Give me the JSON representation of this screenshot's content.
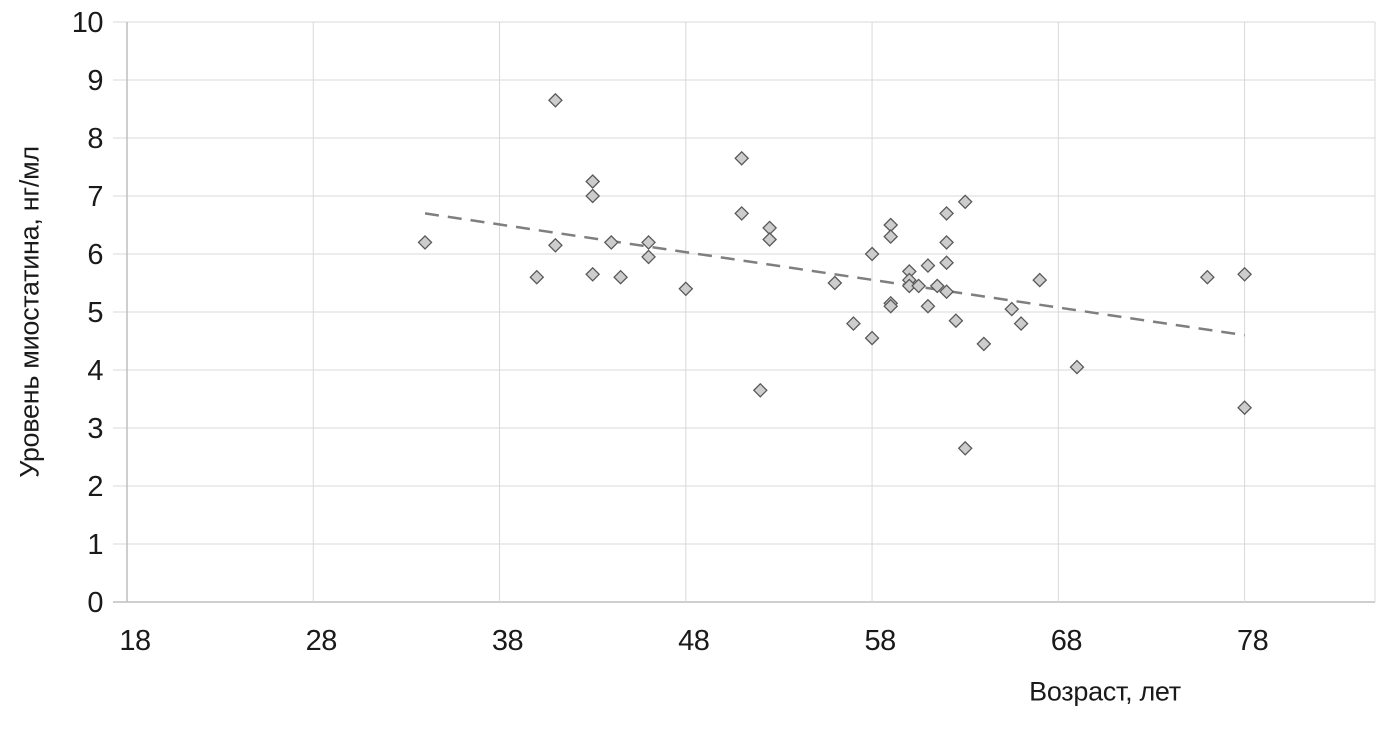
{
  "chart_data": {
    "type": "scatter",
    "title": "",
    "xlabel": "Возраст, лет",
    "ylabel": "Уровень миостатина, нг/мл",
    "xlim": [
      18,
      85
    ],
    "ylim": [
      0,
      10
    ],
    "xticks": [
      18,
      28,
      38,
      48,
      58,
      68,
      78
    ],
    "yticks": [
      0,
      1,
      2,
      3,
      4,
      5,
      6,
      7,
      8,
      9,
      10
    ],
    "grid": true,
    "legend": false,
    "marker": "diamond",
    "colors": {
      "marker_fill": "#cdcdcd",
      "marker_stroke": "#595959",
      "gridline": "#d9d9d9",
      "axis_line": "#bfbfbf",
      "trend_line": "#7f7f7f",
      "tick_text": "#1a1a1a"
    },
    "points": [
      [
        34,
        6.2
      ],
      [
        40,
        5.6
      ],
      [
        41,
        8.65
      ],
      [
        41,
        6.15
      ],
      [
        43,
        7.25
      ],
      [
        43,
        7.0
      ],
      [
        43,
        5.65
      ],
      [
        44,
        6.2
      ],
      [
        44.5,
        5.6
      ],
      [
        46,
        6.2
      ],
      [
        46,
        5.95
      ],
      [
        48,
        5.4
      ],
      [
        51,
        7.65
      ],
      [
        51,
        6.7
      ],
      [
        52.5,
        6.45
      ],
      [
        52.5,
        6.25
      ],
      [
        52,
        3.65
      ],
      [
        56,
        5.5
      ],
      [
        57,
        4.8
      ],
      [
        58,
        4.55
      ],
      [
        58,
        6.0
      ],
      [
        59,
        6.5
      ],
      [
        59,
        6.3
      ],
      [
        59,
        5.15
      ],
      [
        59,
        5.1
      ],
      [
        60,
        5.7
      ],
      [
        60,
        5.55
      ],
      [
        60,
        5.45
      ],
      [
        60.5,
        5.45
      ],
      [
        61,
        5.8
      ],
      [
        61,
        5.1
      ],
      [
        61.5,
        5.45
      ],
      [
        62,
        6.2
      ],
      [
        62,
        6.7
      ],
      [
        62,
        5.85
      ],
      [
        62,
        5.35
      ],
      [
        63,
        6.9
      ],
      [
        62.5,
        4.85
      ],
      [
        63,
        2.65
      ],
      [
        64,
        4.45
      ],
      [
        65.5,
        5.05
      ],
      [
        66,
        4.8
      ],
      [
        67,
        5.55
      ],
      [
        69,
        4.05
      ],
      [
        76,
        5.6
      ],
      [
        78,
        5.65
      ],
      [
        78,
        3.35
      ]
    ],
    "trendline": {
      "style": "dashed",
      "x1": 34,
      "y1": 6.7,
      "x2": 78,
      "y2": 4.6
    }
  }
}
